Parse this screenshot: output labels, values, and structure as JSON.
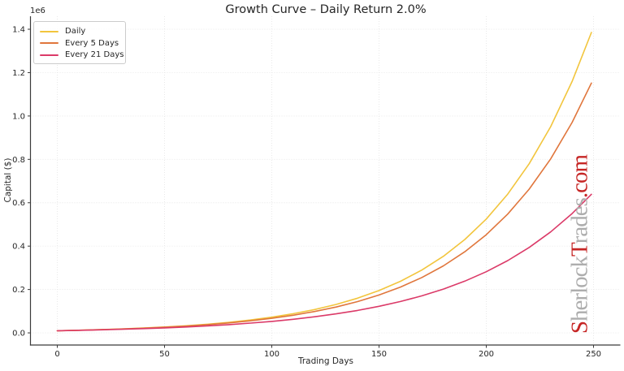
{
  "chart_data": {
    "type": "line",
    "title": "Growth Curve – Daily Return 2.0%",
    "xlabel": "Trading Days",
    "ylabel": "Capital ($)",
    "y_offset_label": "1e6",
    "grid": true,
    "legend_position": "upper-left",
    "xlim": [
      -12.5,
      262.5
    ],
    "ylim": [
      -56000,
      1460000
    ],
    "xticks": [
      0,
      50,
      100,
      150,
      200,
      250
    ],
    "yticks": [
      0,
      200000,
      400000,
      600000,
      800000,
      1000000,
      1200000,
      1400000
    ],
    "ytick_labels": [
      "0.0",
      "0.2",
      "0.4",
      "0.6",
      "0.8",
      "1.0",
      "1.2",
      "1.4"
    ],
    "x": [
      0,
      10,
      20,
      30,
      40,
      50,
      60,
      70,
      80,
      90,
      100,
      110,
      120,
      130,
      140,
      150,
      160,
      170,
      180,
      190,
      200,
      210,
      220,
      230,
      240,
      249
    ],
    "series": [
      {
        "name": "Daily",
        "color": "#F2C53D",
        "values": [
          10000,
          12190,
          14859,
          18114,
          22080,
          26916,
          32810,
          39996,
          48754,
          59431,
          72446,
          88312,
          107652,
          131223,
          159966,
          194998,
          237696,
          289750,
          353203,
          430552,
          524840,
          639797,
          779907,
          950702,
          1158903,
          1385000
        ]
      },
      {
        "name": "Every 5 Days",
        "color": "#E0763C",
        "values": [
          10000,
          12100,
          14641,
          17716,
          21436,
          25937,
          31384,
          37975,
          45950,
          55599,
          67275,
          81403,
          98497,
          119182,
          144210,
          174494,
          211138,
          255477,
          309127,
          374043,
          452593,
          547637,
          662641,
          801795,
          970172,
          1151800
        ]
      },
      {
        "name": "Every 21 Days",
        "color": "#DB3A68",
        "values": [
          10000,
          11817,
          13965,
          16503,
          19502,
          23046,
          27234,
          32184,
          38032,
          44944,
          53112,
          62765,
          74171,
          87651,
          103581,
          122405,
          144651,
          170940,
          202006,
          238718,
          282101,
          333368,
          393951,
          465544,
          550149,
          639200
        ]
      }
    ]
  },
  "watermark": {
    "segments": [
      {
        "text": "S",
        "color": "#C62625"
      },
      {
        "text": "herlock",
        "color": "#ADADAD"
      },
      {
        "text": "T",
        "color": "#C62625"
      },
      {
        "text": "rades",
        "color": "#ADADAD"
      },
      {
        "text": ".com",
        "color": "#C62625"
      }
    ]
  },
  "style": {
    "background": "#ffffff",
    "grid_color": "#e7e7e7",
    "spine_color": "#3a3a3a",
    "text_color": "#262626",
    "legend_border_color": "#cccccc"
  }
}
